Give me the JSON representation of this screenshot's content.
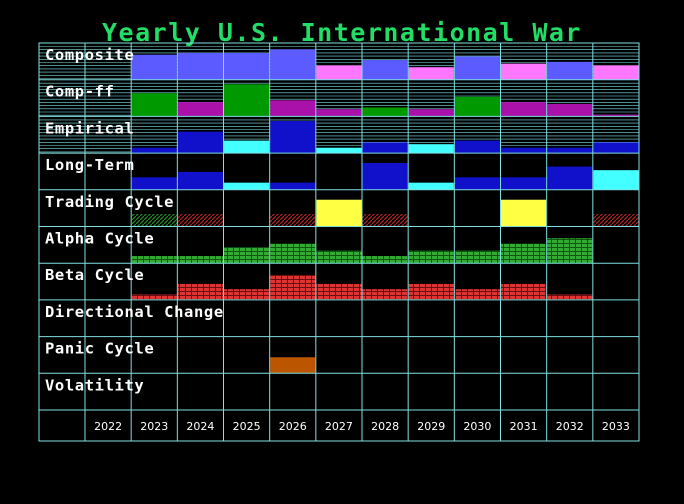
{
  "chart_data": {
    "type": "heatmap",
    "title": "Yearly U.S. International War",
    "categories": [
      "2022",
      "2023",
      "2024",
      "2025",
      "2026",
      "2027",
      "2028",
      "2029",
      "2030",
      "2031",
      "2032",
      "2033"
    ],
    "scale_max": 10,
    "colors": {
      "background": "#000000",
      "grid": "#7fe0e0",
      "title": "#22dd66",
      "label": "#ffffff",
      "blue": "#5b5bff",
      "magenta": "#ff77ff",
      "green": "#009900",
      "purple": "#aa11aa",
      "navy": "#1111cc",
      "cyan": "#44ffff",
      "yellow": "#ffff44",
      "hatch_green": "#228822",
      "hatch_red": "#aa2222",
      "alpha_green": "#33aa33",
      "beta_red": "#dd3333",
      "orange": "#bb5500"
    },
    "rows": [
      {
        "name": "Composite",
        "style": "solid",
        "hlines": true,
        "cells": [
          {
            "v": 0,
            "c": "none"
          },
          {
            "v": 7,
            "c": "blue"
          },
          {
            "v": 7.5,
            "c": "blue"
          },
          {
            "v": 7.5,
            "c": "blue"
          },
          {
            "v": 8.5,
            "c": "blue"
          },
          {
            "v": 4,
            "c": "magenta"
          },
          {
            "v": 5.5,
            "c": "blue"
          },
          {
            "v": 3.5,
            "c": "magenta"
          },
          {
            "v": 6.5,
            "c": "blue"
          },
          {
            "v": 4.5,
            "c": "magenta"
          },
          {
            "v": 5,
            "c": "blue"
          },
          {
            "v": 4,
            "c": "magenta"
          }
        ]
      },
      {
        "name": "Comp-ff",
        "style": "solid",
        "hlines": true,
        "cells": [
          {
            "v": 0,
            "c": "none"
          },
          {
            "v": 6.5,
            "c": "green"
          },
          {
            "v": 4,
            "c": "purple"
          },
          {
            "v": 9,
            "c": "green"
          },
          {
            "v": 4.5,
            "c": "purple"
          },
          {
            "v": 2,
            "c": "purple"
          },
          {
            "v": 2.5,
            "c": "green"
          },
          {
            "v": 2,
            "c": "purple"
          },
          {
            "v": 5.5,
            "c": "green"
          },
          {
            "v": 4,
            "c": "purple"
          },
          {
            "v": 3.5,
            "c": "purple"
          },
          {
            "v": 0.5,
            "c": "purple"
          }
        ]
      },
      {
        "name": "Empirical",
        "style": "solid",
        "hlines": true,
        "cells": [
          {
            "v": 0,
            "c": "none"
          },
          {
            "v": 1.5,
            "c": "navy"
          },
          {
            "v": 6,
            "c": "navy"
          },
          {
            "v": 3.5,
            "c": "cyan"
          },
          {
            "v": 9,
            "c": "navy"
          },
          {
            "v": 1.5,
            "c": "cyan"
          },
          {
            "v": 3,
            "c": "navy"
          },
          {
            "v": 2.5,
            "c": "cyan"
          },
          {
            "v": 3.5,
            "c": "navy"
          },
          {
            "v": 1.5,
            "c": "navy"
          },
          {
            "v": 1.5,
            "c": "navy"
          },
          {
            "v": 3,
            "c": "navy"
          }
        ]
      },
      {
        "name": "Long-Term",
        "style": "solid",
        "hlines": false,
        "cells": [
          {
            "v": 0,
            "c": "none"
          },
          {
            "v": 3.5,
            "c": "navy"
          },
          {
            "v": 5,
            "c": "navy"
          },
          {
            "v": 2,
            "c": "cyan"
          },
          {
            "v": 2,
            "c": "navy"
          },
          {
            "v": 0,
            "c": "none"
          },
          {
            "v": 7.5,
            "c": "navy"
          },
          {
            "v": 2,
            "c": "cyan"
          },
          {
            "v": 3.5,
            "c": "navy"
          },
          {
            "v": 3.5,
            "c": "navy"
          },
          {
            "v": 6.5,
            "c": "navy"
          },
          {
            "v": 5.5,
            "c": "cyan"
          }
        ]
      },
      {
        "name": "Trading Cycle",
        "style": "solid",
        "hlines": false,
        "cells": [
          {
            "v": 0,
            "c": "none"
          },
          {
            "v": 3.5,
            "c": "hatch_green"
          },
          {
            "v": 3.5,
            "c": "hatch_red"
          },
          {
            "v": 0,
            "c": "none"
          },
          {
            "v": 3.5,
            "c": "hatch_red"
          },
          {
            "v": 7.5,
            "c": "yellow"
          },
          {
            "v": 3.5,
            "c": "hatch_red"
          },
          {
            "v": 0,
            "c": "none"
          },
          {
            "v": 0,
            "c": "none"
          },
          {
            "v": 7.5,
            "c": "yellow"
          },
          {
            "v": 0,
            "c": "none"
          },
          {
            "v": 3.5,
            "c": "hatch_red"
          }
        ]
      },
      {
        "name": "Alpha Cycle",
        "style": "brick",
        "hlines": false,
        "cells": [
          {
            "v": 0,
            "c": "none"
          },
          {
            "v": 2,
            "c": "alpha_green"
          },
          {
            "v": 2,
            "c": "alpha_green"
          },
          {
            "v": 4.5,
            "c": "alpha_green"
          },
          {
            "v": 5.5,
            "c": "alpha_green"
          },
          {
            "v": 3.5,
            "c": "alpha_green"
          },
          {
            "v": 2,
            "c": "alpha_green"
          },
          {
            "v": 3.5,
            "c": "alpha_green"
          },
          {
            "v": 3.5,
            "c": "alpha_green"
          },
          {
            "v": 5.5,
            "c": "alpha_green"
          },
          {
            "v": 7,
            "c": "alpha_green"
          },
          {
            "v": 0,
            "c": "none"
          }
        ]
      },
      {
        "name": "Beta Cycle",
        "style": "brick",
        "hlines": false,
        "cells": [
          {
            "v": 0,
            "c": "none"
          },
          {
            "v": 1.5,
            "c": "beta_red"
          },
          {
            "v": 4.5,
            "c": "beta_red"
          },
          {
            "v": 3,
            "c": "beta_red"
          },
          {
            "v": 7,
            "c": "beta_red"
          },
          {
            "v": 4.5,
            "c": "beta_red"
          },
          {
            "v": 3,
            "c": "beta_red"
          },
          {
            "v": 4.5,
            "c": "beta_red"
          },
          {
            "v": 3,
            "c": "beta_red"
          },
          {
            "v": 4.5,
            "c": "beta_red"
          },
          {
            "v": 1.5,
            "c": "beta_red"
          },
          {
            "v": 0,
            "c": "none"
          }
        ]
      },
      {
        "name": "Directional Change",
        "style": "solid",
        "hlines": false,
        "cells": [
          {
            "v": 0,
            "c": "none"
          },
          {
            "v": 0,
            "c": "none"
          },
          {
            "v": 0,
            "c": "none"
          },
          {
            "v": 0,
            "c": "none"
          },
          {
            "v": 0,
            "c": "none"
          },
          {
            "v": 0,
            "c": "none"
          },
          {
            "v": 0,
            "c": "none"
          },
          {
            "v": 0,
            "c": "none"
          },
          {
            "v": 0,
            "c": "none"
          },
          {
            "v": 0,
            "c": "none"
          },
          {
            "v": 0,
            "c": "none"
          },
          {
            "v": 0,
            "c": "none"
          }
        ]
      },
      {
        "name": "Panic Cycle",
        "style": "solid",
        "hlines": false,
        "cells": [
          {
            "v": 0,
            "c": "none"
          },
          {
            "v": 0,
            "c": "none"
          },
          {
            "v": 0,
            "c": "none"
          },
          {
            "v": 0,
            "c": "none"
          },
          {
            "v": 4.5,
            "c": "orange"
          },
          {
            "v": 0,
            "c": "none"
          },
          {
            "v": 0,
            "c": "none"
          },
          {
            "v": 0,
            "c": "none"
          },
          {
            "v": 0,
            "c": "none"
          },
          {
            "v": 0,
            "c": "none"
          },
          {
            "v": 0,
            "c": "none"
          },
          {
            "v": 0,
            "c": "none"
          }
        ]
      },
      {
        "name": "Volatility",
        "style": "solid",
        "hlines": false,
        "cells": [
          {
            "v": 0,
            "c": "none"
          },
          {
            "v": 0,
            "c": "none"
          },
          {
            "v": 0,
            "c": "none"
          },
          {
            "v": 0,
            "c": "none"
          },
          {
            "v": 0,
            "c": "none"
          },
          {
            "v": 0,
            "c": "none"
          },
          {
            "v": 0,
            "c": "none"
          },
          {
            "v": 0,
            "c": "none"
          },
          {
            "v": 0,
            "c": "none"
          },
          {
            "v": 0,
            "c": "none"
          },
          {
            "v": 0,
            "c": "none"
          },
          {
            "v": 0,
            "c": "none"
          }
        ]
      }
    ]
  }
}
